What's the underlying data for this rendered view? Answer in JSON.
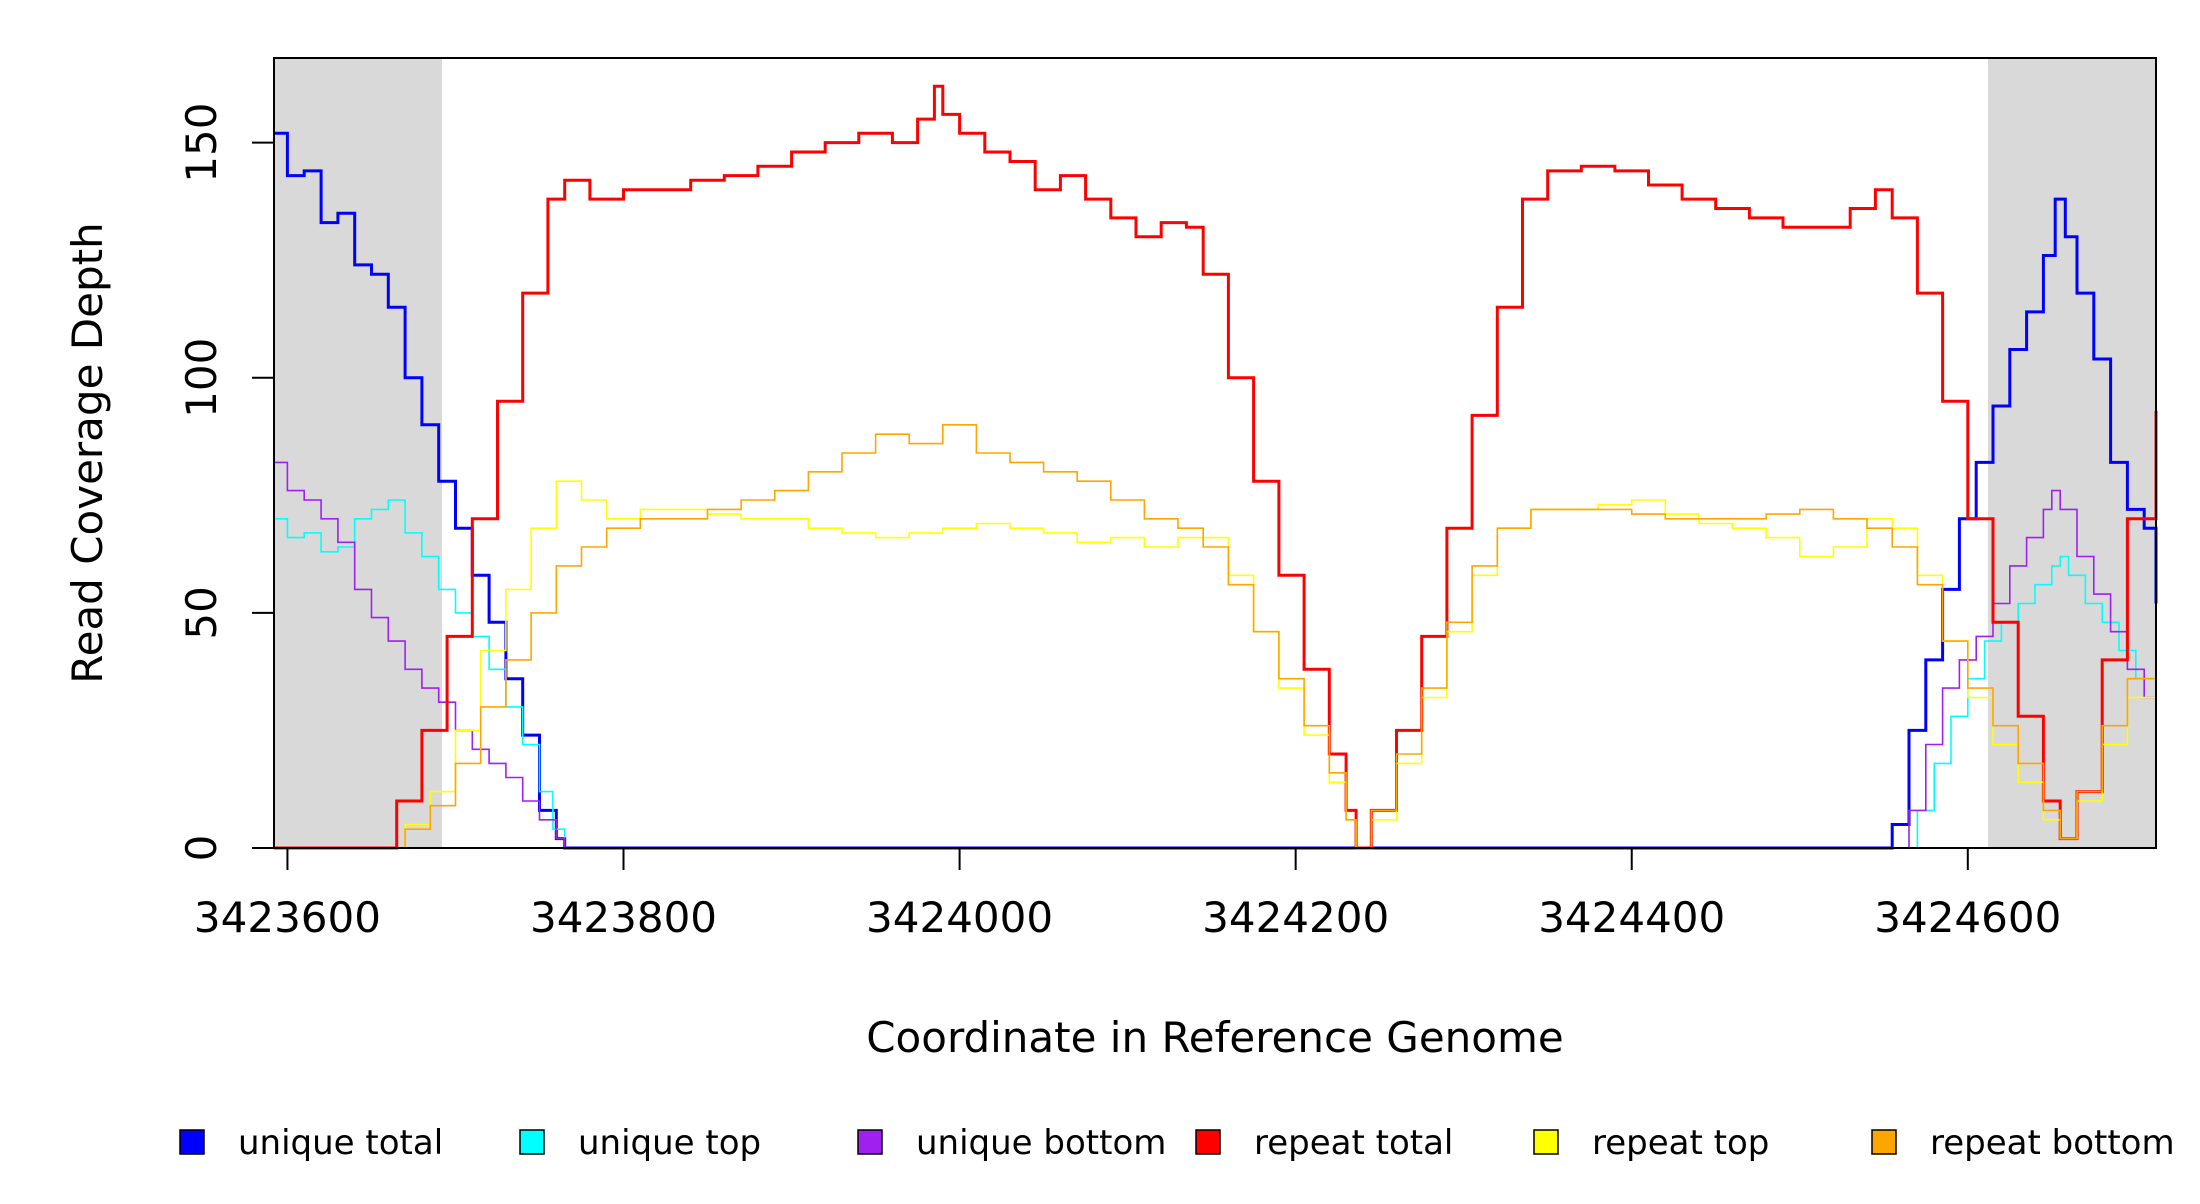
{
  "chart_data": {
    "type": "line",
    "title": "",
    "xlabel": "Coordinate in Reference Genome",
    "ylabel": "Read Coverage Depth",
    "xlim": [
      3423592,
      3424712
    ],
    "ylim": [
      0,
      168
    ],
    "xticks": [
      3423600,
      3423800,
      3424000,
      3424200,
      3424400,
      3424600
    ],
    "yticks": [
      0,
      50,
      100,
      150
    ],
    "shaded_regions": [
      {
        "from": 3423592,
        "to": 3423692,
        "color": "#d9d9d9"
      },
      {
        "from": 3424612,
        "to": 3424712,
        "color": "#d9d9d9"
      }
    ],
    "legend_position": "bottom",
    "series": [
      {
        "name": "unique total",
        "color": "#0000ff",
        "x": [
          3423592,
          3423600,
          3423610,
          3423620,
          3423630,
          3423640,
          3423650,
          3423660,
          3423670,
          3423680,
          3423690,
          3423700,
          3423710,
          3423720,
          3423730,
          3423740,
          3423750,
          3423760,
          3423765,
          3424550,
          3424555,
          3424565,
          3424575,
          3424585,
          3424595,
          3424605,
          3424615,
          3424625,
          3424635,
          3424645,
          3424652,
          3424658,
          3424665,
          3424675,
          3424685,
          3424695,
          3424705,
          3424712
        ],
        "y": [
          152,
          143,
          144,
          133,
          135,
          124,
          122,
          115,
          100,
          90,
          78,
          68,
          58,
          48,
          36,
          24,
          8,
          2,
          0,
          0,
          5,
          25,
          40,
          55,
          70,
          82,
          94,
          106,
          114,
          126,
          138,
          130,
          118,
          104,
          82,
          72,
          68,
          52
        ]
      },
      {
        "name": "unique top",
        "color": "#00ffff",
        "x": [
          3423592,
          3423600,
          3423610,
          3423620,
          3423630,
          3423640,
          3423650,
          3423660,
          3423670,
          3423680,
          3423690,
          3423700,
          3423710,
          3423720,
          3423730,
          3423740,
          3423750,
          3423758,
          3423765,
          3424560,
          3424570,
          3424580,
          3424590,
          3424600,
          3424610,
          3424620,
          3424630,
          3424640,
          3424650,
          3424655,
          3424660,
          3424670,
          3424680,
          3424690,
          3424700,
          3424712
        ],
        "y": [
          70,
          66,
          67,
          63,
          64,
          70,
          72,
          74,
          67,
          62,
          55,
          50,
          45,
          38,
          30,
          22,
          12,
          4,
          0,
          0,
          8,
          18,
          28,
          36,
          44,
          48,
          52,
          56,
          60,
          62,
          58,
          52,
          48,
          42,
          36,
          30
        ]
      },
      {
        "name": "unique bottom",
        "color": "#a020f0",
        "x": [
          3423592,
          3423600,
          3423610,
          3423620,
          3423630,
          3423640,
          3423650,
          3423660,
          3423670,
          3423680,
          3423690,
          3423700,
          3423710,
          3423720,
          3423730,
          3423740,
          3423750,
          3423760,
          3423765,
          3424555,
          3424565,
          3424575,
          3424585,
          3424595,
          3424605,
          3424615,
          3424625,
          3424635,
          3424645,
          3424650,
          3424655,
          3424665,
          3424675,
          3424685,
          3424695,
          3424705,
          3424712
        ],
        "y": [
          82,
          76,
          74,
          70,
          65,
          55,
          49,
          44,
          38,
          34,
          31,
          25,
          21,
          18,
          15,
          10,
          6,
          2,
          0,
          0,
          8,
          22,
          34,
          40,
          45,
          52,
          60,
          66,
          72,
          76,
          72,
          62,
          54,
          46,
          38,
          32,
          28
        ]
      },
      {
        "name": "repeat total",
        "color": "#ff0000",
        "x": [
          3423592,
          3423660,
          3423665,
          3423680,
          3423695,
          3423710,
          3423725,
          3423740,
          3423755,
          3423765,
          3423780,
          3423800,
          3423820,
          3423840,
          3423860,
          3423880,
          3423900,
          3423920,
          3423940,
          3423960,
          3423975,
          3423985,
          3423990,
          3424000,
          3424015,
          3424030,
          3424045,
          3424060,
          3424075,
          3424090,
          3424105,
          3424120,
          3424135,
          3424145,
          3424160,
          3424175,
          3424190,
          3424205,
          3424220,
          3424230,
          3424236,
          3424245,
          3424260,
          3424275,
          3424290,
          3424305,
          3424320,
          3424335,
          3424350,
          3424370,
          3424390,
          3424410,
          3424430,
          3424450,
          3424470,
          3424490,
          3424510,
          3424530,
          3424545,
          3424555,
          3424570,
          3424585,
          3424600,
          3424615,
          3424630,
          3424645,
          3424655,
          3424665,
          3424680,
          3424695,
          3424712
        ],
        "y": [
          0,
          0,
          10,
          25,
          45,
          70,
          95,
          118,
          138,
          142,
          138,
          140,
          140,
          142,
          143,
          145,
          148,
          150,
          152,
          150,
          155,
          162,
          156,
          152,
          148,
          146,
          140,
          143,
          138,
          134,
          130,
          133,
          132,
          122,
          100,
          78,
          58,
          38,
          20,
          8,
          0,
          8,
          25,
          45,
          68,
          92,
          115,
          138,
          144,
          145,
          144,
          141,
          138,
          136,
          134,
          132,
          132,
          136,
          140,
          134,
          118,
          95,
          70,
          48,
          28,
          10,
          2,
          12,
          40,
          70,
          93
        ]
      },
      {
        "name": "repeat top",
        "color": "#ffff00",
        "x": [
          3423592,
          3423660,
          3423670,
          3423685,
          3423700,
          3423715,
          3423730,
          3423745,
          3423760,
          3423775,
          3423790,
          3423810,
          3423830,
          3423850,
          3423870,
          3423890,
          3423910,
          3423930,
          3423950,
          3423970,
          3423990,
          3424010,
          3424030,
          3424050,
          3424070,
          3424090,
          3424110,
          3424130,
          3424145,
          3424160,
          3424175,
          3424190,
          3424205,
          3424220,
          3424230,
          3424236,
          3424245,
          3424260,
          3424275,
          3424290,
          3424305,
          3424320,
          3424340,
          3424360,
          3424380,
          3424400,
          3424420,
          3424440,
          3424460,
          3424480,
          3424500,
          3424520,
          3424540,
          3424555,
          3424570,
          3424585,
          3424600,
          3424615,
          3424630,
          3424645,
          3424655,
          3424665,
          3424680,
          3424695,
          3424712
        ],
        "y": [
          0,
          0,
          5,
          12,
          25,
          42,
          55,
          68,
          78,
          74,
          70,
          72,
          72,
          71,
          70,
          70,
          68,
          67,
          66,
          67,
          68,
          69,
          68,
          67,
          65,
          66,
          64,
          66,
          66,
          58,
          46,
          34,
          24,
          14,
          6,
          0,
          6,
          18,
          32,
          46,
          58,
          68,
          72,
          72,
          73,
          74,
          71,
          69,
          68,
          66,
          62,
          64,
          70,
          68,
          58,
          44,
          32,
          22,
          14,
          6,
          2,
          10,
          22,
          32,
          48
        ]
      },
      {
        "name": "repeat bottom",
        "color": "#ffa500",
        "x": [
          3423592,
          3423660,
          3423670,
          3423685,
          3423700,
          3423715,
          3423730,
          3423745,
          3423760,
          3423775,
          3423790,
          3423810,
          3423830,
          3423850,
          3423870,
          3423890,
          3423910,
          3423930,
          3423950,
          3423970,
          3423990,
          3424010,
          3424030,
          3424050,
          3424070,
          3424090,
          3424110,
          3424130,
          3424145,
          3424160,
          3424175,
          3424190,
          3424205,
          3424220,
          3424230,
          3424236,
          3424245,
          3424260,
          3424275,
          3424290,
          3424305,
          3424320,
          3424340,
          3424360,
          3424380,
          3424400,
          3424420,
          3424440,
          3424460,
          3424480,
          3424500,
          3424520,
          3424540,
          3424555,
          3424570,
          3424585,
          3424600,
          3424615,
          3424630,
          3424645,
          3424655,
          3424665,
          3424680,
          3424695,
          3424712
        ],
        "y": [
          0,
          0,
          4,
          9,
          18,
          30,
          40,
          50,
          60,
          64,
          68,
          70,
          70,
          72,
          74,
          76,
          80,
          84,
          88,
          86,
          90,
          84,
          82,
          80,
          78,
          74,
          70,
          68,
          64,
          56,
          46,
          36,
          26,
          16,
          6,
          0,
          8,
          20,
          34,
          48,
          60,
          68,
          72,
          72,
          72,
          71,
          70,
          70,
          70,
          71,
          72,
          70,
          68,
          64,
          56,
          44,
          34,
          26,
          18,
          8,
          2,
          12,
          26,
          36,
          48
        ]
      }
    ]
  }
}
